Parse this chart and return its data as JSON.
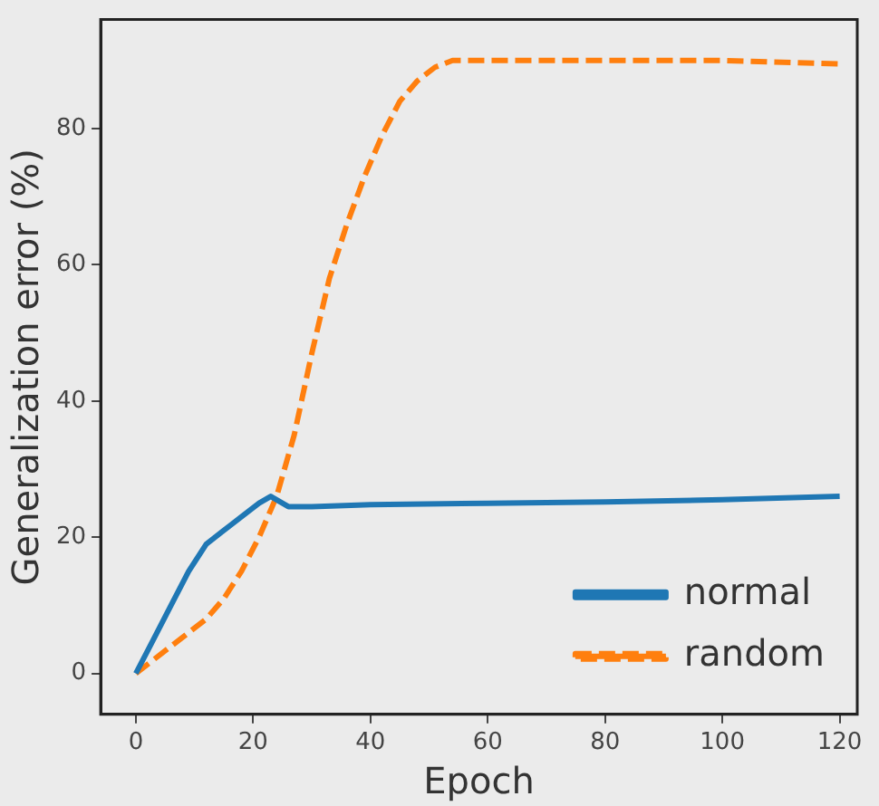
{
  "chart_data": {
    "type": "line",
    "xlabel": "Epoch",
    "ylabel": "Generalization error (%)",
    "xlim": [
      -6,
      123
    ],
    "ylim": [
      -6,
      96
    ],
    "xticks": [
      0,
      20,
      40,
      60,
      80,
      100,
      120
    ],
    "yticks": [
      0,
      20,
      40,
      60,
      80
    ],
    "legend": "bottom right",
    "grid": false,
    "marker": "none",
    "series": [
      {
        "name": "normal",
        "color": "#1f77b4",
        "line_style": "solid",
        "x": [
          0,
          3,
          6,
          9,
          12,
          15,
          18,
          21,
          23,
          26,
          30,
          40,
          60,
          80,
          100,
          120
        ],
        "values": [
          0,
          5,
          10,
          15,
          19,
          21,
          23,
          25,
          26,
          24.5,
          24.5,
          24.8,
          25,
          25.2,
          25.5,
          26
        ]
      },
      {
        "name": "random",
        "color": "#ff7f0e",
        "line_style": "dashed",
        "x": [
          0,
          3,
          6,
          9,
          12,
          15,
          18,
          21,
          24,
          27,
          30,
          33,
          36,
          39,
          42,
          45,
          48,
          51,
          54,
          60,
          80,
          100,
          120
        ],
        "values": [
          0,
          2,
          4,
          6,
          8,
          11,
          15,
          20,
          26,
          35,
          47,
          58,
          66,
          73,
          79,
          84,
          87,
          89,
          90,
          90,
          90,
          90,
          89.5
        ]
      }
    ]
  }
}
